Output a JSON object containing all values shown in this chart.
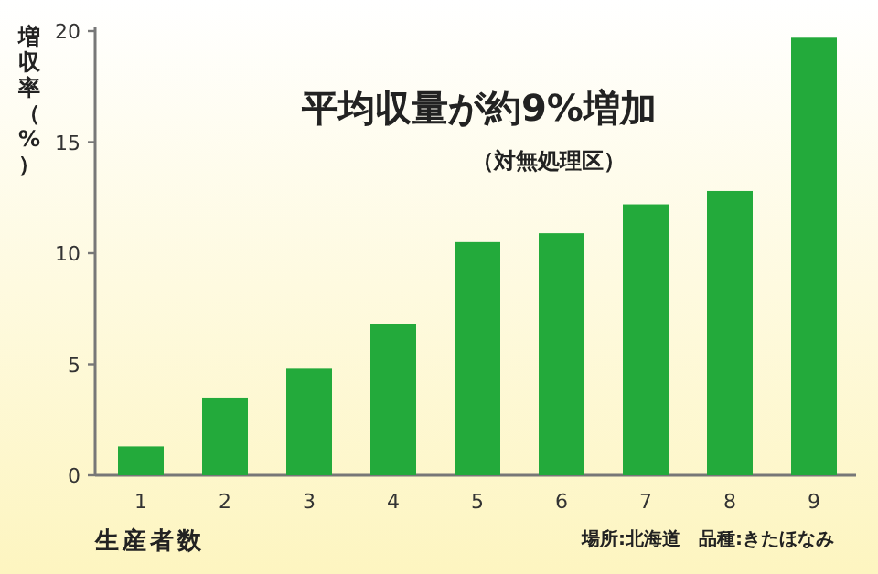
{
  "chart_data": {
    "type": "bar",
    "title": "平均収量が約9%増加",
    "subtitle": "（対無処理区）",
    "xlabel": "生産者数",
    "ylabel": "増収率（%）",
    "annotations": [
      "場所:北海道　品種:きたほなみ"
    ],
    "categories": [
      "1",
      "2",
      "3",
      "4",
      "5",
      "6",
      "7",
      "8",
      "9"
    ],
    "values": [
      1.3,
      3.5,
      4.8,
      6.8,
      10.5,
      10.9,
      12.2,
      12.8,
      19.7
    ],
    "color": "#23aa3b",
    "ylim": [
      0,
      20
    ],
    "yticks": [
      0,
      5,
      10,
      15,
      20
    ]
  }
}
